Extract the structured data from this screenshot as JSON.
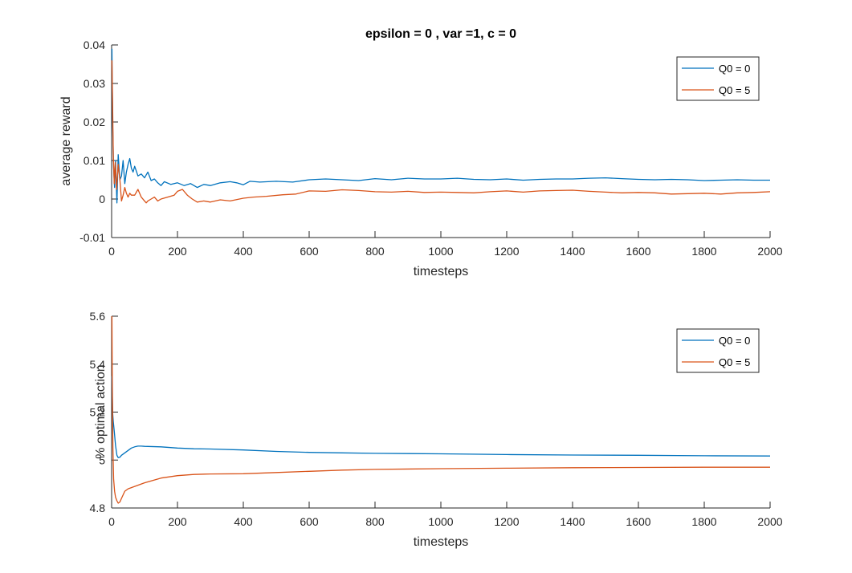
{
  "chart_data": [
    {
      "type": "line",
      "title": "epsilon = 0 , var =1, c = 0",
      "xlabel": "timesteps",
      "ylabel": "average reward",
      "xlim": [
        0,
        2000
      ],
      "ylim": [
        -0.01,
        0.04
      ],
      "xticks": [
        0,
        200,
        400,
        600,
        800,
        1000,
        1200,
        1400,
        1600,
        1800,
        2000
      ],
      "yticks": [
        -0.01,
        0,
        0.01,
        0.02,
        0.03,
        0.04
      ],
      "ytick_labels": [
        "-0.01",
        "0",
        "0.01",
        "0.02",
        "0.03",
        "0.04"
      ],
      "legend_position": "top-right",
      "series": [
        {
          "name": "Q0 = 0",
          "color": "#0072BD",
          "x": [
            1,
            3,
            6,
            9,
            12,
            16,
            20,
            25,
            30,
            35,
            40,
            45,
            50,
            55,
            60,
            65,
            70,
            80,
            90,
            100,
            110,
            120,
            130,
            140,
            150,
            160,
            180,
            200,
            220,
            240,
            260,
            280,
            300,
            330,
            360,
            380,
            400,
            420,
            450,
            500,
            550,
            600,
            650,
            700,
            750,
            800,
            850,
            900,
            950,
            1000,
            1050,
            1100,
            1150,
            1200,
            1250,
            1300,
            1350,
            1400,
            1450,
            1500,
            1550,
            1600,
            1650,
            1700,
            1750,
            1800,
            1850,
            1900,
            1950,
            2000
          ],
          "y": [
            0.039,
            0.02,
            0.008,
            0.003,
            0.01,
            -0.001,
            0.0115,
            0.005,
            0.006,
            0.01,
            0.004,
            0.007,
            0.009,
            0.0105,
            0.008,
            0.007,
            0.0085,
            0.006,
            0.0065,
            0.0055,
            0.007,
            0.0048,
            0.0052,
            0.0042,
            0.0035,
            0.0045,
            0.0038,
            0.0042,
            0.0035,
            0.004,
            0.003,
            0.0038,
            0.0035,
            0.0042,
            0.0045,
            0.0042,
            0.0037,
            0.0046,
            0.0044,
            0.0046,
            0.0044,
            0.005,
            0.0052,
            0.005,
            0.0048,
            0.0053,
            0.005,
            0.0054,
            0.0052,
            0.0052,
            0.0054,
            0.0051,
            0.005,
            0.0052,
            0.0049,
            0.0051,
            0.0052,
            0.0052,
            0.0054,
            0.0055,
            0.0053,
            0.0051,
            0.005,
            0.0051,
            0.005,
            0.0048,
            0.0049,
            0.005,
            0.0049,
            0.0049
          ]
        },
        {
          "name": "Q0 = 5",
          "color": "#D95319",
          "x": [
            1,
            3,
            5,
            8,
            11,
            15,
            20,
            25,
            30,
            35,
            40,
            45,
            50,
            55,
            60,
            70,
            80,
            90,
            100,
            105,
            110,
            120,
            130,
            140,
            150,
            170,
            190,
            200,
            215,
            230,
            245,
            260,
            280,
            300,
            330,
            360,
            400,
            430,
            470,
            520,
            560,
            600,
            650,
            700,
            750,
            800,
            850,
            900,
            950,
            1000,
            1050,
            1100,
            1150,
            1200,
            1250,
            1300,
            1350,
            1400,
            1450,
            1500,
            1550,
            1600,
            1650,
            1700,
            1750,
            1800,
            1850,
            1900,
            1950,
            2000
          ],
          "y": [
            0.036,
            0.025,
            0.011,
            0.004,
            0.0095,
            0.0025,
            0.009,
            0.005,
            -0.0005,
            0.001,
            0.003,
            0.0015,
            0.0005,
            0.0015,
            0.001,
            0.001,
            0.0025,
            0.0005,
            -0.0005,
            -0.001,
            -0.0005,
            0.0,
            0.0005,
            -0.0005,
            0.0,
            0.0005,
            0.001,
            0.002,
            0.0025,
            0.001,
            0.0,
            -0.0008,
            -0.0005,
            -0.0008,
            -0.0002,
            -0.0005,
            0.0002,
            0.0005,
            0.0007,
            0.0011,
            0.0013,
            0.0021,
            0.002,
            0.0024,
            0.0022,
            0.0019,
            0.0018,
            0.002,
            0.0017,
            0.0018,
            0.0017,
            0.0016,
            0.0019,
            0.0021,
            0.0018,
            0.0021,
            0.0022,
            0.0023,
            0.002,
            0.0018,
            0.0016,
            0.0017,
            0.0016,
            0.0013,
            0.0014,
            0.0015,
            0.0013,
            0.0016,
            0.0017,
            0.0019
          ]
        }
      ]
    },
    {
      "type": "line",
      "title": "",
      "xlabel": "timesteps",
      "ylabel": "% optimal action",
      "xlim": [
        0,
        2000
      ],
      "ylim": [
        4.8,
        5.6
      ],
      "xticks": [
        0,
        200,
        400,
        600,
        800,
        1000,
        1200,
        1400,
        1600,
        1800,
        2000
      ],
      "yticks": [
        4.8,
        5,
        5.2,
        5.4,
        5.6
      ],
      "ytick_labels": [
        "4.8",
        "5",
        "5.2",
        "5.4",
        "5.6"
      ],
      "legend_position": "top-right",
      "series": [
        {
          "name": "Q0 = 0",
          "color": "#0072BD",
          "x": [
            1,
            3,
            5,
            8,
            12,
            16,
            20,
            25,
            30,
            40,
            50,
            60,
            70,
            80,
            90,
            100,
            150,
            200,
            250,
            300,
            400,
            500,
            600,
            700,
            800,
            900,
            1000,
            1200,
            1400,
            1600,
            1800,
            2000
          ],
          "y": [
            5.35,
            5.2,
            5.16,
            5.12,
            5.06,
            5.02,
            5.01,
            5.012,
            5.02,
            5.03,
            5.04,
            5.05,
            5.055,
            5.058,
            5.058,
            5.057,
            5.055,
            5.05,
            5.047,
            5.046,
            5.042,
            5.036,
            5.032,
            5.03,
            5.028,
            5.027,
            5.026,
            5.023,
            5.021,
            5.02,
            5.018,
            5.017
          ]
        },
        {
          "name": "Q0 = 5",
          "color": "#D95319",
          "x": [
            1,
            2,
            4,
            6,
            9,
            12,
            16,
            20,
            25,
            30,
            40,
            50,
            60,
            80,
            100,
            150,
            200,
            250,
            300,
            400,
            500,
            600,
            700,
            800,
            1000,
            1200,
            1400,
            1600,
            1800,
            2000
          ],
          "y": [
            5.6,
            5.35,
            5.05,
            4.92,
            4.87,
            4.845,
            4.83,
            4.82,
            4.825,
            4.84,
            4.87,
            4.88,
            4.885,
            4.895,
            4.905,
            4.925,
            4.935,
            4.94,
            4.942,
            4.943,
            4.948,
            4.953,
            4.958,
            4.961,
            4.964,
            4.966,
            4.968,
            4.969,
            4.97,
            4.97
          ]
        }
      ]
    }
  ]
}
